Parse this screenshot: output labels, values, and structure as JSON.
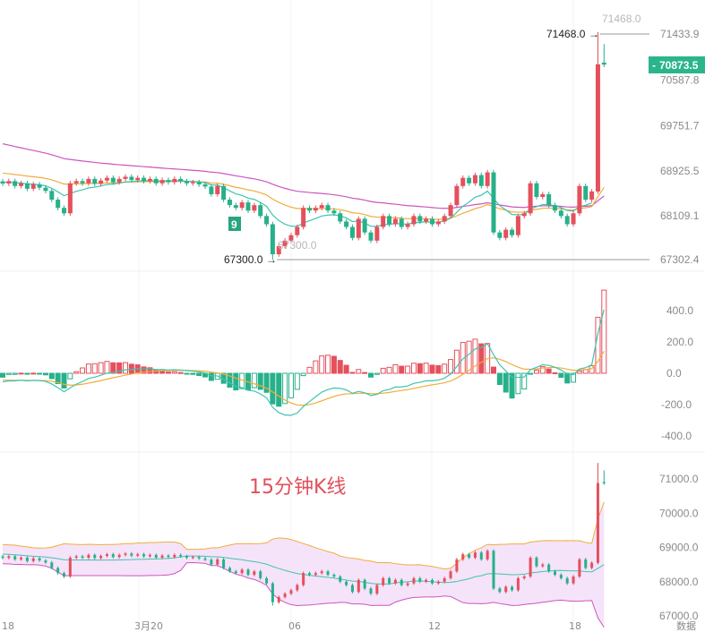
{
  "colors": {
    "up": "#e4505c",
    "down": "#27b08a",
    "ma1": "#3fc4b0",
    "ma2": "#f0ad3a",
    "ma3": "#cc55c0",
    "boll_fill": "#f3dcf7",
    "tag": "#2bb58c"
  },
  "chart_data": [
    {
      "type": "candlestick",
      "title": "15分钟K线",
      "yaxis_ticks": [
        "71433.9",
        "70587.8",
        "69751.7",
        "68925.5",
        "68109.1",
        "67302.4"
      ],
      "ylim": [
        67302.4,
        71433.9
      ],
      "max_label": "71468.0",
      "max_label_faded": "71468.0",
      "min_label": "67300.0",
      "min_label_faded": "67300.0",
      "last_price": "70873.5",
      "badge": "9",
      "xaxis_ticks": [
        "18",
        "3月20",
        "06",
        "12",
        "18",
        "数据"
      ],
      "closes": [
        68695,
        68740,
        68650,
        68700,
        68600,
        68680,
        68620,
        68560,
        68400,
        68250,
        68150,
        68700,
        68740,
        68700,
        68780,
        68690,
        68750,
        68800,
        68720,
        68780,
        68820,
        68760,
        68800,
        68740,
        68780,
        68700,
        68760,
        68720,
        68780,
        68740,
        68700,
        68720,
        68680,
        68640,
        68500,
        68650,
        68400,
        68300,
        68250,
        68350,
        68200,
        68300,
        68100,
        67950,
        67400,
        67550,
        67650,
        67750,
        67900,
        68250,
        68200,
        68250,
        68300,
        68200,
        68150,
        68000,
        67900,
        67700,
        68050,
        67800,
        67650,
        67900,
        68100,
        67950,
        68050,
        67900,
        67950,
        68100,
        68000,
        68050,
        67950,
        68000,
        68100,
        68300,
        68650,
        68800,
        68700,
        68850,
        68650,
        68900,
        67800,
        67700,
        67850,
        67750,
        68100,
        68150,
        68700,
        68450,
        68500,
        68300,
        68200,
        68100,
        67950,
        68150,
        68650,
        68400,
        68550,
        70880,
        70873.5
      ],
      "high_index": 97,
      "high": 71468.0,
      "low_index": 44,
      "low": 67300.0
    },
    {
      "type": "macd",
      "yaxis_ticks": [
        "400.0",
        "200.0",
        "0.0",
        "-200.0",
        "-400.0"
      ],
      "ylim": [
        -400,
        400
      ]
    },
    {
      "type": "boll",
      "yaxis_ticks": [
        "71000.0",
        "70000.0",
        "69000.0",
        "68000.0",
        "67000.0"
      ],
      "ylim": [
        67000,
        71000
      ]
    }
  ]
}
